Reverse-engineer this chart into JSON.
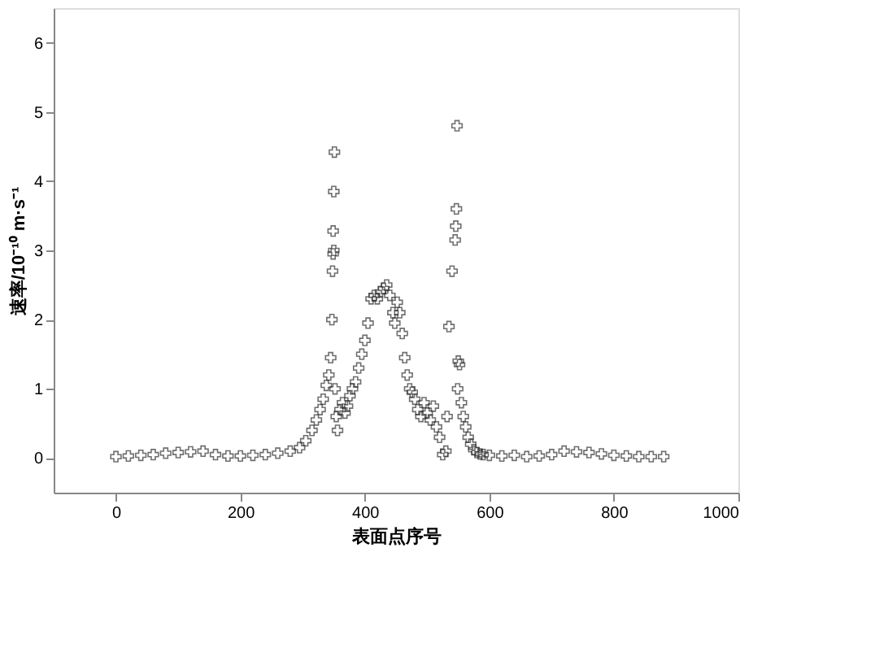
{
  "chart_data": {
    "type": "scatter",
    "xlabel": "表面点序号",
    "ylabel": "速率/10⁻¹⁰ m·s⁻¹",
    "marker": "cross",
    "grid": false,
    "xlim": [
      -100,
      1000
    ],
    "ylim": [
      -0.5,
      6.5
    ],
    "xticks": [
      0,
      200,
      400,
      600,
      800,
      1000
    ],
    "yticks": [
      0,
      1,
      2,
      3,
      4,
      5,
      6
    ],
    "series": [
      {
        "color": "#333333",
        "x": [
          0,
          20,
          40,
          60,
          80,
          100,
          120,
          140,
          160,
          180,
          200,
          220,
          240,
          260,
          280,
          295,
          305,
          315,
          322,
          328,
          333,
          338,
          342,
          345,
          347,
          348,
          349,
          349,
          350,
          350,
          351,
          352,
          354,
          356,
          360,
          364,
          368,
          372,
          376,
          380,
          385,
          390,
          395,
          400,
          405,
          410,
          415,
          420,
          425,
          430,
          435,
          440,
          445,
          448,
          452,
          456,
          460,
          464,
          468,
          472,
          476,
          480,
          485,
          490,
          495,
          500,
          505,
          510,
          515,
          520,
          525,
          530,
          532,
          535,
          540,
          545,
          546,
          547,
          548,
          549,
          550,
          552,
          555,
          558,
          562,
          566,
          570,
          575,
          580,
          585,
          590,
          600,
          620,
          640,
          660,
          680,
          700,
          720,
          740,
          760,
          780,
          800,
          820,
          840,
          860,
          880
        ],
        "values": [
          0.02,
          0.03,
          0.04,
          0.05,
          0.07,
          0.08,
          0.09,
          0.1,
          0.05,
          0.03,
          0.03,
          0.04,
          0.05,
          0.07,
          0.1,
          0.15,
          0.25,
          0.4,
          0.55,
          0.7,
          0.85,
          1.05,
          1.2,
          1.45,
          2.0,
          2.7,
          2.95,
          3.28,
          3.0,
          3.85,
          4.42,
          1.0,
          0.6,
          0.4,
          0.7,
          0.8,
          0.65,
          0.75,
          0.9,
          1.0,
          1.1,
          1.3,
          1.5,
          1.7,
          1.95,
          2.3,
          2.35,
          2.3,
          2.4,
          2.45,
          2.5,
          2.35,
          2.1,
          1.95,
          2.25,
          2.1,
          1.8,
          1.45,
          1.2,
          1.0,
          0.95,
          0.85,
          0.7,
          0.6,
          0.8,
          0.65,
          0.55,
          0.75,
          0.45,
          0.3,
          0.05,
          0.1,
          0.6,
          1.9,
          2.7,
          3.15,
          3.35,
          3.6,
          4.8,
          1.0,
          1.4,
          1.35,
          0.8,
          0.6,
          0.45,
          0.3,
          0.2,
          0.12,
          0.08,
          0.06,
          0.05,
          0.04,
          0.03,
          0.04,
          0.02,
          0.03,
          0.05,
          0.1,
          0.09,
          0.08,
          0.06,
          0.04,
          0.03,
          0.02,
          0.02,
          0.02
        ]
      }
    ]
  }
}
